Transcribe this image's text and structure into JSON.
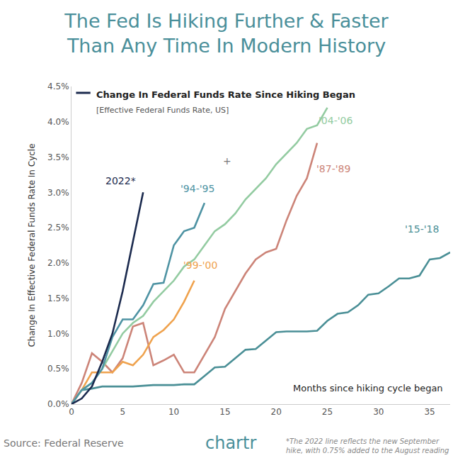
{
  "chart_data": {
    "type": "line",
    "title": [
      "The Fed Is Hiking Further & Faster",
      "Than Any Time In Modern History"
    ],
    "subtitle": "Change In Federal Funds Rate Since Hiking Began",
    "subtitle_note": "[Effective Federal Funds Rate, US]",
    "x_label": "Months since hiking cycle began",
    "y_label": "Change In Effective Federal Funds Rate In Cycle",
    "source": "Source: Federal Reserve",
    "logo": "chartr",
    "footnote": [
      "*The 2022 line reflects the new September",
      "hike, with 0.75% added to the August reading"
    ],
    "annotations": [
      {
        "text": "+",
        "x": 15.2,
        "y": 3.45
      }
    ],
    "xlim": [
      0,
      37
    ],
    "xticks": [
      0,
      5,
      10,
      15,
      20,
      25,
      30,
      35
    ],
    "ylim": [
      0,
      4.5
    ],
    "yticks": [
      {
        "value": 0,
        "label": "0.0%"
      },
      {
        "value": 0.5,
        "label": "0.5%"
      },
      {
        "value": 1,
        "label": "1.0%"
      },
      {
        "value": 1.5,
        "label": "1.5%"
      },
      {
        "value": 2,
        "label": "2.0%"
      },
      {
        "value": 2.5,
        "label": "2.5%"
      },
      {
        "value": 3,
        "label": "3.0%"
      },
      {
        "value": 3.5,
        "label": "3.5%"
      },
      {
        "value": 4,
        "label": "4.0%"
      },
      {
        "value": 4.5,
        "label": "4.5%"
      }
    ],
    "grid": false,
    "series": [
      {
        "name": "'15-'18",
        "color": "#4a8f96",
        "x": [
          0,
          1,
          2,
          3,
          4,
          5,
          6,
          7,
          8,
          9,
          10,
          11,
          12,
          13,
          14,
          15,
          16,
          17,
          18,
          19,
          20,
          21,
          22,
          23,
          24,
          25,
          26,
          27,
          28,
          29,
          30,
          31,
          32,
          33,
          34,
          35,
          36,
          37
        ],
        "values": [
          0,
          0.2,
          0.22,
          0.25,
          0.25,
          0.25,
          0.25,
          0.26,
          0.27,
          0.27,
          0.27,
          0.28,
          0.28,
          0.4,
          0.52,
          0.53,
          0.65,
          0.77,
          0.78,
          0.9,
          1.02,
          1.03,
          1.03,
          1.03,
          1.04,
          1.18,
          1.28,
          1.3,
          1.4,
          1.55,
          1.57,
          1.67,
          1.78,
          1.78,
          1.82,
          2.05,
          2.07,
          2.15
        ]
      },
      {
        "name": "'87-'89",
        "color": "#cc8478",
        "x": [
          0,
          1,
          2,
          3,
          4,
          5,
          6,
          7,
          8,
          9,
          10,
          11,
          12,
          13,
          14,
          15,
          16,
          17,
          18,
          19,
          20,
          21,
          22,
          23,
          24
        ],
        "values": [
          0,
          0.3,
          0.72,
          0.6,
          0.45,
          0.65,
          1.1,
          1.15,
          0.55,
          0.62,
          0.7,
          0.45,
          0.45,
          0.7,
          0.95,
          1.35,
          1.6,
          1.85,
          2.05,
          2.15,
          2.2,
          2.6,
          2.95,
          3.2,
          3.7
        ]
      },
      {
        "name": "'99-'00",
        "color": "#efa24d",
        "x": [
          0,
          1,
          2,
          3,
          4,
          5,
          6,
          7,
          8,
          9,
          10,
          11,
          12
        ],
        "values": [
          0,
          0.2,
          0.45,
          0.45,
          0.45,
          0.6,
          0.55,
          0.7,
          0.95,
          1.05,
          1.2,
          1.45,
          1.75
        ]
      },
      {
        "name": "'04-'06",
        "color": "#93cba1",
        "x": [
          0,
          1,
          2,
          3,
          4,
          5,
          6,
          7,
          8,
          9,
          10,
          11,
          12,
          13,
          14,
          15,
          16,
          17,
          18,
          19,
          20,
          21,
          22,
          23,
          24,
          25
        ],
        "values": [
          0,
          0.2,
          0.3,
          0.5,
          0.75,
          1.0,
          1.15,
          1.25,
          1.45,
          1.6,
          1.75,
          1.95,
          2.05,
          2.25,
          2.45,
          2.55,
          2.7,
          2.9,
          3.05,
          3.2,
          3.4,
          3.55,
          3.7,
          3.9,
          3.95,
          4.2
        ]
      },
      {
        "name": "'94-'95",
        "color": "#4e93a3",
        "x": [
          0,
          1,
          2,
          3,
          4,
          5,
          6,
          7,
          8,
          9,
          10,
          11,
          12,
          13
        ],
        "values": [
          0,
          0.2,
          0.3,
          0.5,
          0.95,
          1.2,
          1.2,
          1.4,
          1.7,
          1.72,
          2.25,
          2.45,
          2.5,
          2.85
        ]
      },
      {
        "name": "2022*",
        "color": "#1b2a4e",
        "x": [
          0,
          1,
          2,
          3,
          4,
          5,
          6,
          7
        ],
        "values": [
          0,
          0.08,
          0.25,
          0.6,
          1.0,
          1.6,
          2.3,
          3.0
        ]
      }
    ]
  }
}
